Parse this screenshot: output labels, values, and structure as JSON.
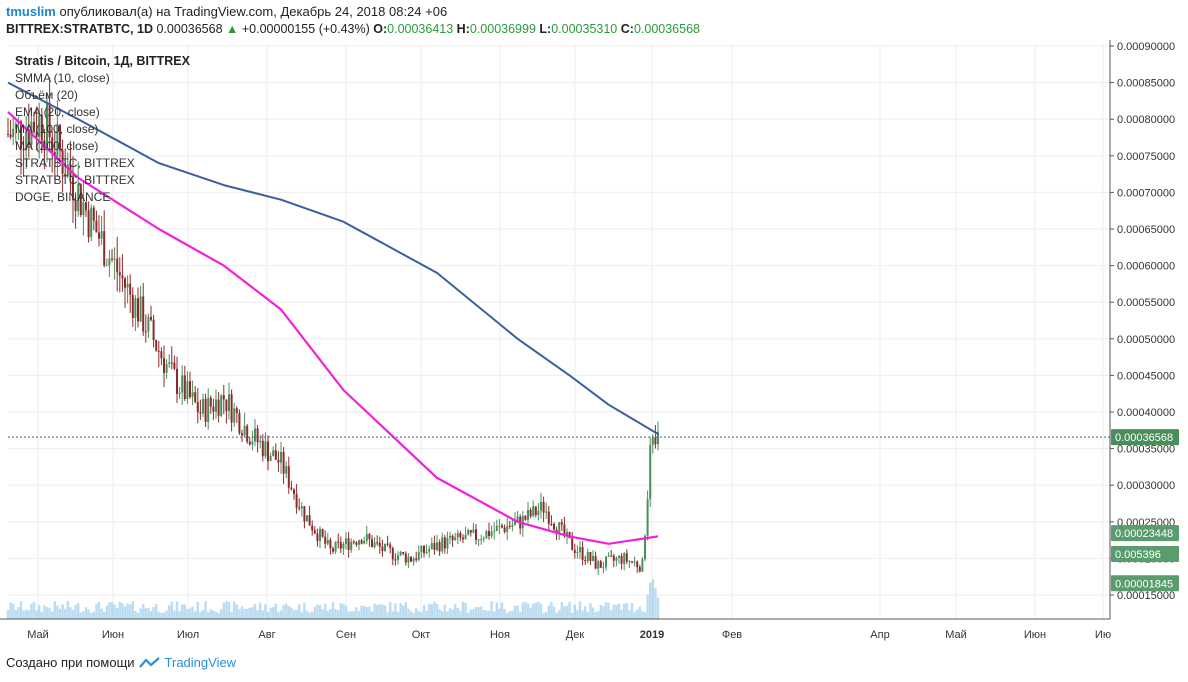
{
  "header": {
    "user": "tmuslim",
    "published_text": "опубликовал(а) на TradingView.com, Декабрь 24, 2018 08:24 +06",
    "symbol": "BITTREX:STRATBTC, 1D",
    "last": "0.00036568",
    "change": "+0.00000155 (+0.43%)",
    "o_label": "O:",
    "o_value": "0.00036413",
    "h_label": "H:",
    "h_value": "0.00036999",
    "l_label": "L:",
    "l_value": "0.00035310",
    "c_label": "C:",
    "c_value": "0.00036568"
  },
  "legend": {
    "title": "Stratis / Bitcoin, 1Д, BITTREX",
    "items": [
      "SMMA (10, close)",
      "Объём (20)",
      "EMA (20, close)",
      "MA (100, close)",
      "MA (200, close)",
      "STRATBTC, BITTREX",
      "STRATBTC, BITTREX",
      "DOGE, BINANCE"
    ]
  },
  "footer": {
    "created_with": "Создано при помощи",
    "brand": "TradingView"
  },
  "colors": {
    "ma200": "#3a5fa0",
    "ma100": "#ee22dd",
    "up": "#4a8f5b",
    "down": "#8b2a2a",
    "volume": "#8ec5e8",
    "badge_price": "#4a8f5b",
    "badge_other": "#5a9c6e"
  },
  "chart_data": {
    "type": "candlestick",
    "title": "Stratis / Bitcoin, 1Д, BITTREX",
    "x_ticks": [
      "Май",
      "Июн",
      "Июл",
      "Авг",
      "Сен",
      "Окт",
      "Ноя",
      "Дек",
      "2019",
      "Фев",
      "Апр",
      "Май",
      "Июн",
      "Ию"
    ],
    "y_ticks": [
      "0.00015000",
      "0.00020000",
      "0.00025000",
      "0.00030000",
      "0.00035000",
      "0.00040000",
      "0.00045000",
      "0.00050000",
      "0.00055000",
      "0.00060000",
      "0.00065000",
      "0.00070000",
      "0.00075000",
      "0.00080000",
      "0.00085000",
      "0.00090000"
    ],
    "ylim": [
      0.000115,
      0.000905
    ],
    "badges": [
      {
        "label": "0.00036568",
        "value": 0.00036568
      },
      {
        "label": "0.00023448",
        "value": 0.00023448
      },
      {
        "label": "0.005396",
        "value": 0.000206
      },
      {
        "label": "0.00001845",
        "value": 0.000166
      }
    ],
    "close_approx": [
      {
        "date": "2018-04-20",
        "close": 0.00078
      },
      {
        "date": "2018-05-01",
        "close": 0.0008
      },
      {
        "date": "2018-05-10",
        "close": 0.00074
      },
      {
        "date": "2018-05-20",
        "close": 0.00066
      },
      {
        "date": "2018-06-01",
        "close": 0.00058
      },
      {
        "date": "2018-06-10",
        "close": 0.00052
      },
      {
        "date": "2018-06-20",
        "close": 0.00045
      },
      {
        "date": "2018-07-01",
        "close": 0.0004
      },
      {
        "date": "2018-07-10",
        "close": 0.00042
      },
      {
        "date": "2018-07-20",
        "close": 0.00037
      },
      {
        "date": "2018-08-01",
        "close": 0.00033
      },
      {
        "date": "2018-08-10",
        "close": 0.00026
      },
      {
        "date": "2018-08-20",
        "close": 0.00021
      },
      {
        "date": "2018-09-01",
        "close": 0.00023
      },
      {
        "date": "2018-09-10",
        "close": 0.00021
      },
      {
        "date": "2018-09-20",
        "close": 0.0002
      },
      {
        "date": "2018-10-01",
        "close": 0.00022
      },
      {
        "date": "2018-10-15",
        "close": 0.00023
      },
      {
        "date": "2018-11-01",
        "close": 0.00025
      },
      {
        "date": "2018-11-10",
        "close": 0.00027
      },
      {
        "date": "2018-11-20",
        "close": 0.00022
      },
      {
        "date": "2018-12-01",
        "close": 0.00019
      },
      {
        "date": "2018-12-10",
        "close": 0.0002
      },
      {
        "date": "2018-12-18",
        "close": 0.00019
      },
      {
        "date": "2018-12-21",
        "close": 0.00034
      },
      {
        "date": "2018-12-24",
        "close": 0.00036568
      }
    ],
    "series": [
      {
        "name": "MA (200, close)",
        "values_approx": [
          0.00085,
          0.0008,
          0.00074,
          0.00071,
          0.00069,
          0.00066,
          0.00059,
          0.0005,
          0.00045,
          0.00041,
          0.00037
        ]
      },
      {
        "name": "MA (100, close)",
        "values_approx": [
          0.00081,
          0.00072,
          0.00065,
          0.0006,
          0.00054,
          0.00043,
          0.00031,
          0.00025,
          0.00023,
          0.00022,
          0.00023
        ]
      }
    ]
  }
}
